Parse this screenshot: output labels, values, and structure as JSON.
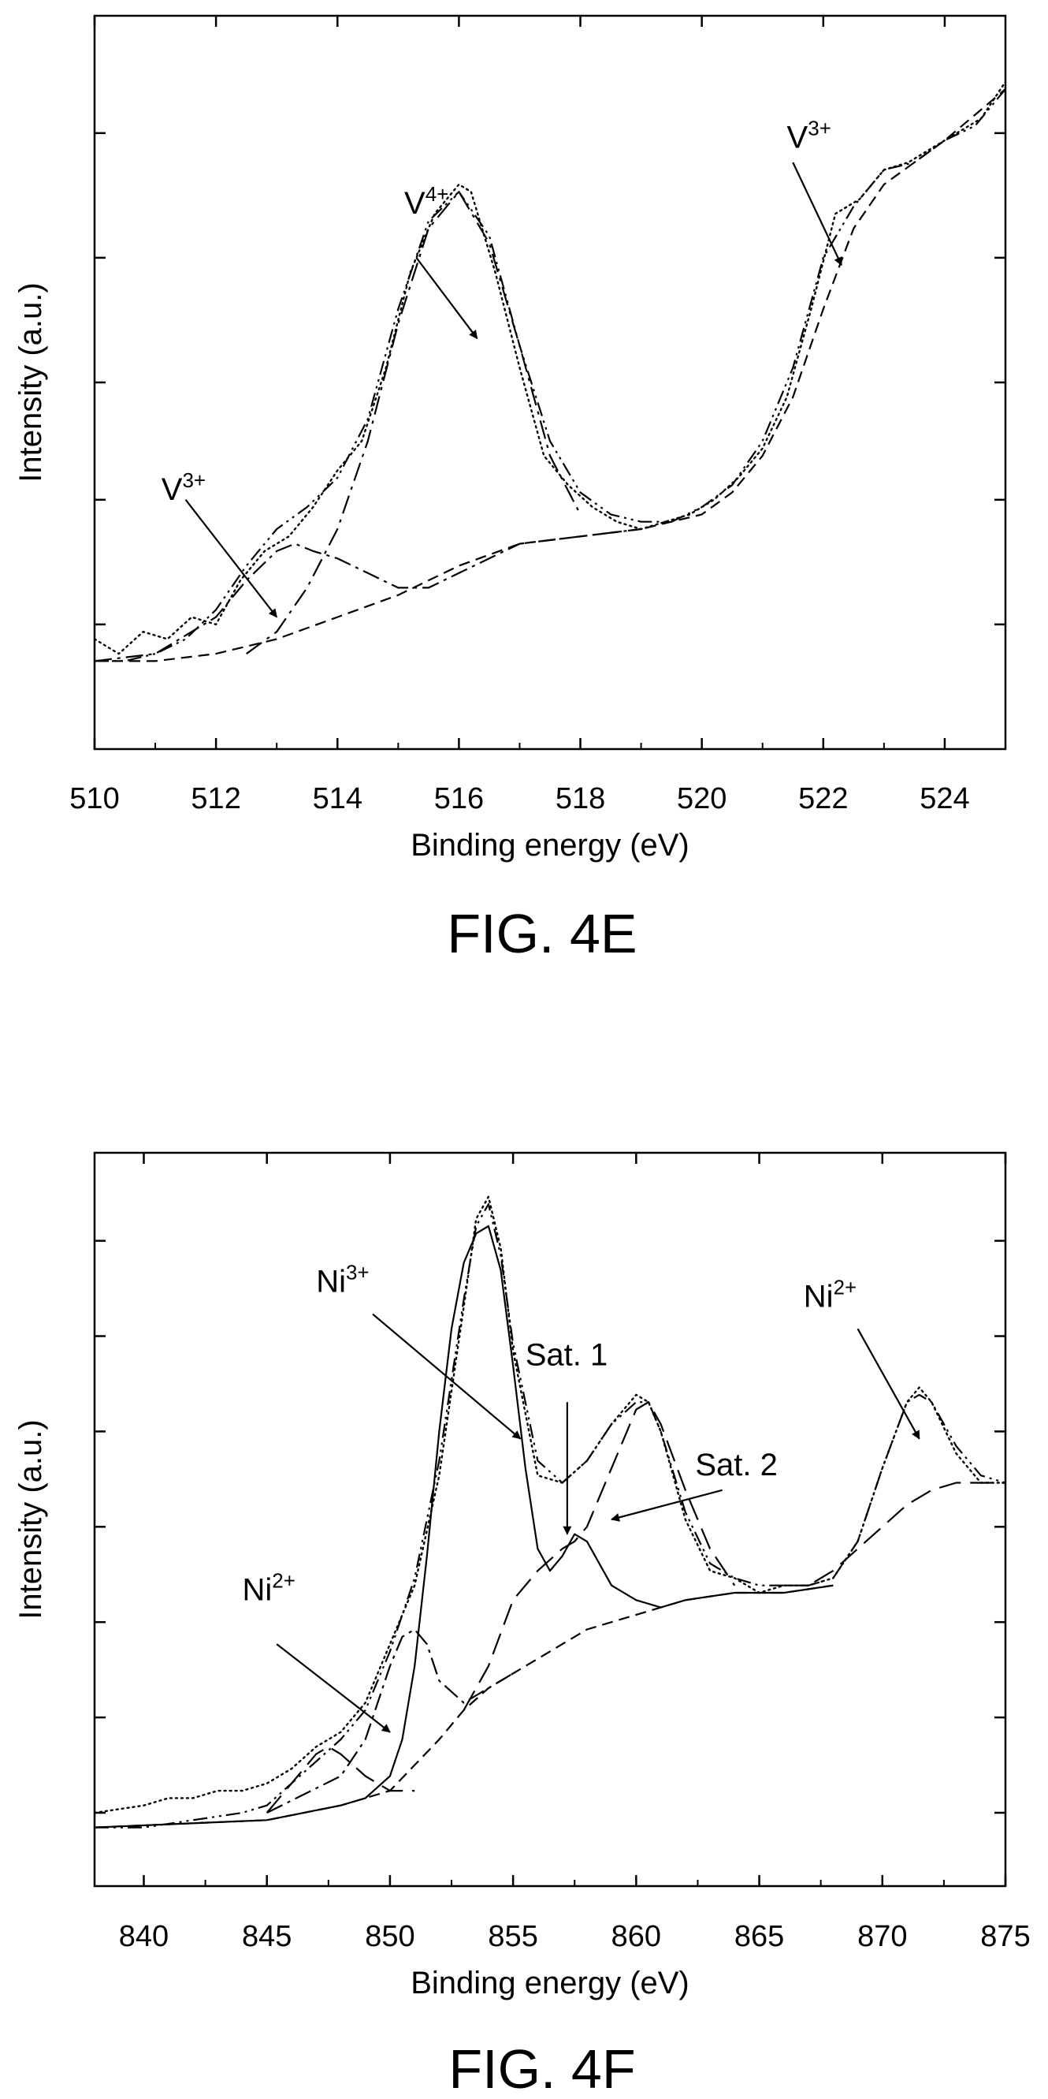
{
  "figures": [
    {
      "caption": "FIG. 4E",
      "chart_data": {
        "type": "line",
        "title": "",
        "xlabel": "Binding energy (eV)",
        "ylabel": "Intensity (a.u.)",
        "xlim": [
          510,
          525
        ],
        "ylim": [
          0,
          1
        ],
        "x_ticks": [
          510,
          512,
          514,
          516,
          518,
          520,
          522,
          524
        ],
        "y_ticks_unlabeled": [
          0.17,
          0.34,
          0.5,
          0.67,
          0.84
        ],
        "grid": false,
        "legend": "none",
        "series": [
          {
            "style": "dotted",
            "x": [
              510.0,
              510.4,
              510.8,
              511.2,
              511.6,
              512.0,
              512.4,
              512.8,
              513.2,
              513.6,
              514.0,
              514.4,
              514.8,
              515.2,
              515.6,
              516.0,
              516.2,
              516.6,
              517.0,
              517.4,
              517.8,
              518.2,
              518.6,
              519.0,
              519.4,
              519.8,
              520.2,
              520.6,
              521.0,
              521.4,
              521.8,
              522.2,
              522.6,
              523.0,
              523.4,
              523.8,
              524.2,
              524.6,
              525.0
            ],
            "y": [
              0.15,
              0.13,
              0.16,
              0.15,
              0.18,
              0.17,
              0.23,
              0.27,
              0.29,
              0.33,
              0.38,
              0.42,
              0.52,
              0.65,
              0.73,
              0.77,
              0.76,
              0.65,
              0.52,
              0.4,
              0.36,
              0.33,
              0.31,
              0.3,
              0.31,
              0.32,
              0.34,
              0.37,
              0.41,
              0.48,
              0.6,
              0.73,
              0.75,
              0.79,
              0.8,
              0.82,
              0.84,
              0.86,
              0.91
            ]
          },
          {
            "style": "dash-dot-dot",
            "x": [
              510.0,
              510.5,
              511.0,
              511.5,
              512.0,
              512.5,
              513.0,
              513.5,
              514.0,
              514.5,
              515.0,
              515.5,
              516.0,
              516.5,
              517.0,
              517.5,
              518.0,
              518.5,
              519.0,
              519.5,
              520.0,
              520.5,
              521.0,
              521.5,
              522.0,
              522.5,
              523.0,
              523.5,
              524.0,
              524.5,
              525.0
            ],
            "y": [
              0.12,
              0.12,
              0.13,
              0.15,
              0.19,
              0.25,
              0.3,
              0.33,
              0.37,
              0.45,
              0.6,
              0.72,
              0.76,
              0.7,
              0.55,
              0.42,
              0.35,
              0.32,
              0.31,
              0.31,
              0.33,
              0.36,
              0.42,
              0.52,
              0.67,
              0.74,
              0.79,
              0.8,
              0.83,
              0.85,
              0.9
            ]
          },
          {
            "style": "dashed",
            "x": [
              510.0,
              511.0,
              512.0,
              513.0,
              514.0,
              515.0,
              516.0,
              517.0,
              518.0,
              519.0,
              519.5,
              520.0,
              520.5,
              521.0,
              521.5,
              522.0,
              522.5,
              523.0,
              523.5,
              524.0,
              525.0
            ],
            "y": [
              0.12,
              0.12,
              0.13,
              0.15,
              0.18,
              0.21,
              0.25,
              0.28,
              0.29,
              0.3,
              0.31,
              0.32,
              0.35,
              0.4,
              0.48,
              0.6,
              0.71,
              0.77,
              0.8,
              0.83,
              0.9
            ]
          },
          {
            "style": "dash-dot",
            "x": [
              510.0,
              511.0,
              512.0,
              512.5,
              513.0,
              513.3,
              513.6,
              514.0,
              514.5,
              515.0,
              515.5,
              516.0,
              516.5,
              517.0,
              518.0,
              519.0
            ],
            "y": [
              0.12,
              0.13,
              0.18,
              0.23,
              0.27,
              0.28,
              0.27,
              0.26,
              0.24,
              0.22,
              0.22,
              0.24,
              0.26,
              0.28,
              0.29,
              0.3
            ]
          },
          {
            "style": "dash-dot-peak",
            "x": [
              512.5,
              513.0,
              513.5,
              514.0,
              514.5,
              515.0,
              515.5,
              516.0,
              516.5,
              517.0,
              517.5,
              518.0
            ],
            "y": [
              0.13,
              0.16,
              0.22,
              0.3,
              0.42,
              0.58,
              0.71,
              0.76,
              0.69,
              0.55,
              0.4,
              0.32
            ]
          }
        ],
        "annotations": [
          {
            "base": "V",
            "sup": "4+",
            "text_x": 515.1,
            "text_y": 0.73,
            "tail": [
              515.3,
              0.67
            ],
            "head": [
              516.3,
              0.56
            ]
          },
          {
            "base": "V",
            "sup": "3+",
            "text_x": 511.1,
            "text_y": 0.34,
            "tail": [
              511.5,
              0.34
            ],
            "head": [
              513.0,
              0.18
            ]
          },
          {
            "base": "V",
            "sup": "3+",
            "text_x": 521.4,
            "text_y": 0.82,
            "tail": [
              521.5,
              0.8
            ],
            "head": [
              522.3,
              0.66
            ]
          }
        ]
      }
    },
    {
      "caption": "FIG. 4F",
      "chart_data": {
        "type": "line",
        "title": "",
        "xlabel": "Binding energy (eV)",
        "ylabel": "Intensity (a.u.)",
        "xlim": [
          838,
          875
        ],
        "ylim": [
          0,
          1
        ],
        "x_ticks": [
          840,
          845,
          850,
          855,
          860,
          865,
          870,
          875
        ],
        "y_ticks_unlabeled": [
          0.1,
          0.23,
          0.36,
          0.49,
          0.62,
          0.75,
          0.88
        ],
        "grid": false,
        "legend": "none",
        "series": [
          {
            "style": "dotted",
            "x": [
              838,
              840,
              841,
              842,
              843,
              844,
              845,
              846,
              847,
              848,
              849,
              850,
              851,
              852,
              853,
              853.5,
              854,
              854.5,
              855,
              856,
              857,
              858,
              859,
              860,
              860.5,
              861,
              862,
              863,
              864,
              865,
              866,
              867,
              868,
              869,
              870,
              871,
              871.5,
              872,
              873,
              874,
              875
            ],
            "y": [
              0.1,
              0.11,
              0.12,
              0.12,
              0.13,
              0.13,
              0.14,
              0.16,
              0.19,
              0.21,
              0.25,
              0.33,
              0.41,
              0.56,
              0.79,
              0.91,
              0.94,
              0.87,
              0.73,
              0.56,
              0.55,
              0.58,
              0.63,
              0.67,
              0.66,
              0.62,
              0.5,
              0.43,
              0.42,
              0.4,
              0.41,
              0.41,
              0.42,
              0.47,
              0.57,
              0.66,
              0.68,
              0.66,
              0.59,
              0.55,
              0.55
            ]
          },
          {
            "style": "dash-dot-dot",
            "x": [
              838,
              840,
              842,
              844,
              845,
              846,
              847,
              848,
              849,
              850,
              851,
              852,
              853,
              853.5,
              854,
              854.5,
              855,
              856,
              857,
              858,
              859,
              860,
              860.5,
              861,
              862,
              863,
              864,
              865,
              866,
              867,
              868,
              869,
              870,
              871,
              871.5,
              872,
              873,
              874,
              875
            ],
            "y": [
              0.08,
              0.08,
              0.09,
              0.1,
              0.11,
              0.14,
              0.17,
              0.2,
              0.24,
              0.32,
              0.42,
              0.58,
              0.8,
              0.9,
              0.93,
              0.86,
              0.74,
              0.58,
              0.55,
              0.58,
              0.63,
              0.66,
              0.66,
              0.62,
              0.51,
              0.44,
              0.42,
              0.41,
              0.41,
              0.41,
              0.42,
              0.47,
              0.57,
              0.66,
              0.67,
              0.66,
              0.6,
              0.56,
              0.55
            ]
          },
          {
            "style": "solid",
            "x": [
              838,
              845,
              848,
              849,
              850,
              850.5,
              851,
              851.5,
              852,
              852.5,
              853,
              853.5,
              854,
              854.5,
              855,
              855.5,
              856,
              856.5,
              857,
              857.5,
              858,
              858.5,
              859,
              860,
              861,
              862,
              864,
              866,
              868
            ],
            "y": [
              0.08,
              0.09,
              0.11,
              0.12,
              0.15,
              0.2,
              0.3,
              0.45,
              0.62,
              0.76,
              0.85,
              0.89,
              0.9,
              0.84,
              0.71,
              0.57,
              0.46,
              0.43,
              0.45,
              0.48,
              0.47,
              0.44,
              0.41,
              0.39,
              0.38,
              0.39,
              0.4,
              0.4,
              0.41
            ]
          },
          {
            "style": "dashed",
            "x": [
              838,
              845,
              848,
              850,
              852,
              853,
              854,
              855,
              856,
              857,
              858,
              859,
              860,
              861,
              862,
              864,
              866,
              868
            ],
            "y": [
              0.08,
              0.09,
              0.11,
              0.13,
              0.2,
              0.24,
              0.27,
              0.29,
              0.31,
              0.33,
              0.35,
              0.36,
              0.37,
              0.38,
              0.39,
              0.4,
              0.4,
              0.41
            ]
          },
          {
            "style": "dash-dot",
            "x": [
              845,
              848,
              849,
              850,
              850.5,
              851,
              851.5,
              852,
              853,
              854,
              855
            ],
            "y": [
              0.1,
              0.15,
              0.2,
              0.3,
              0.34,
              0.35,
              0.33,
              0.28,
              0.25,
              0.27,
              0.29
            ]
          },
          {
            "style": "long-dash",
            "x": [
              845,
              846,
              847,
              847.5,
              848,
              849,
              850,
              851
            ],
            "y": [
              0.1,
              0.14,
              0.18,
              0.19,
              0.18,
              0.15,
              0.13,
              0.13
            ]
          },
          {
            "style": "long-dash",
            "x": [
              853,
              854,
              855,
              856,
              857,
              857.5,
              858,
              859,
              860,
              860.5,
              861,
              862,
              863,
              864
            ],
            "y": [
              0.24,
              0.3,
              0.39,
              0.43,
              0.46,
              0.47,
              0.49,
              0.57,
              0.65,
              0.66,
              0.63,
              0.54,
              0.46,
              0.41
            ]
          },
          {
            "style": "long-dash",
            "x": [
              866,
              867,
              868,
              869,
              870,
              871,
              872,
              873,
              874,
              875
            ],
            "y": [
              0.41,
              0.41,
              0.43,
              0.46,
              0.49,
              0.52,
              0.54,
              0.55,
              0.55,
              0.55
            ]
          }
        ],
        "annotations": [
          {
            "base": "Ni",
            "sup": "3+",
            "text_x": 847.0,
            "text_y": 0.81,
            "tail": [
              849.3,
              0.78
            ],
            "head": [
              855.3,
              0.61
            ]
          },
          {
            "base": "Sat. 1",
            "sup": "",
            "text_x": 855.5,
            "text_y": 0.71,
            "tail": [
              857.2,
              0.66
            ],
            "head": [
              857.2,
              0.48
            ]
          },
          {
            "base": "Sat. 2",
            "sup": "",
            "text_x": 862.4,
            "text_y": 0.56,
            "tail": [
              863.5,
              0.54
            ],
            "head": [
              859.0,
              0.5
            ]
          },
          {
            "base": "Ni",
            "sup": "2+",
            "text_x": 866.8,
            "text_y": 0.79,
            "tail": [
              869.0,
              0.76
            ],
            "head": [
              871.5,
              0.61
            ]
          },
          {
            "base": "Ni",
            "sup": "2+",
            "text_x": 844.0,
            "text_y": 0.39,
            "tail": [
              845.4,
              0.33
            ],
            "head": [
              850.0,
              0.21
            ]
          }
        ]
      }
    }
  ]
}
